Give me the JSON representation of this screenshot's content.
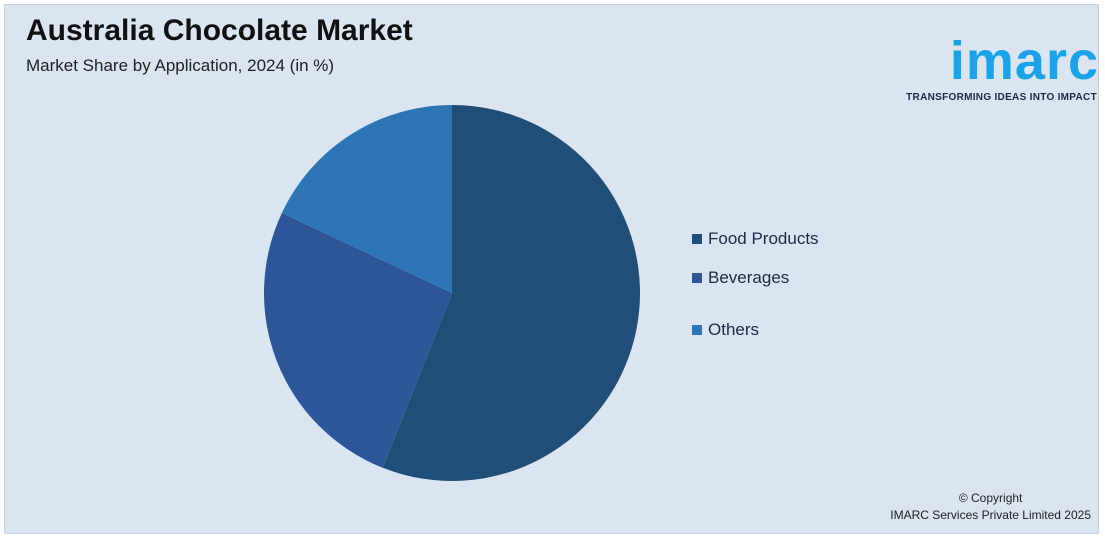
{
  "header": {
    "title": "Australia Chocolate Market",
    "subtitle": "Market Share by Application, 2024 (in %)"
  },
  "logo": {
    "word": "imarc",
    "tagline": "TRANSFORMING IDEAS INTO IMPACT"
  },
  "footer": {
    "copyright_line1": "© Copyright",
    "copyright_line2": "IMARC Services Private Limited 2025"
  },
  "chart_data": {
    "type": "pie",
    "categories": [
      "Food Products",
      "Beverages",
      "Others"
    ],
    "values": [
      56,
      26,
      18
    ],
    "colors": [
      "#1f4e79",
      "#2e5597",
      "#2e75b6"
    ],
    "legend_position": "right",
    "title": "Australia Chocolate Market",
    "subtitle": "Market Share by Application, 2024 (in %)"
  }
}
